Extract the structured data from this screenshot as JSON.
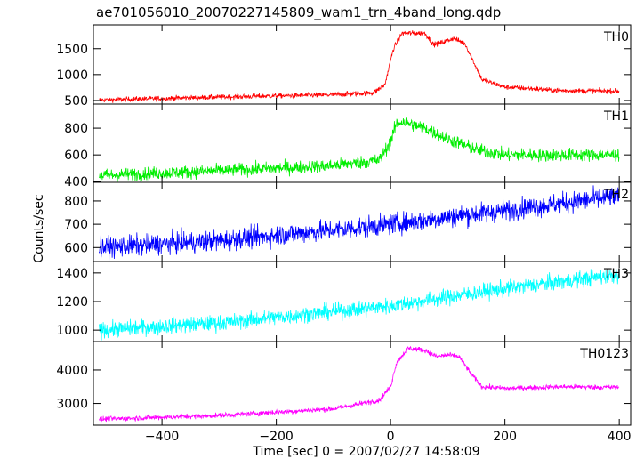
{
  "chart_data": {
    "type": "line",
    "title": "ae701056010_20070227145809_wam1_trn_4band_long.qdp",
    "xlabel": "Time [sec] 0 = 2007/02/27 14:58:09",
    "ylabel": "Counts/sec",
    "xlim": [
      -520,
      420
    ],
    "x_ticks": [
      -400,
      -200,
      0,
      200,
      400
    ],
    "x_tick_labels": [
      "−400",
      "−200",
      "0",
      "200",
      "400"
    ],
    "x_range": [
      -510,
      400
    ],
    "series": [
      {
        "name": "TH0",
        "color": "#ff0000",
        "ylim": [
          430,
          1960
        ],
        "y_ticks": [
          500,
          1000,
          1500
        ],
        "noise": 35,
        "x": [
          -510,
          -400,
          -200,
          -100,
          -30,
          -10,
          5,
          20,
          60,
          75,
          90,
          110,
          130,
          160,
          200,
          300,
          400
        ],
        "y": [
          510,
          540,
          590,
          610,
          650,
          800,
          1500,
          1800,
          1800,
          1580,
          1620,
          1700,
          1600,
          900,
          760,
          690,
          680
        ]
      },
      {
        "name": "TH1",
        "color": "#00ee00",
        "ylim": [
          395,
          980
        ],
        "y_ticks": [
          400,
          600,
          800
        ],
        "noise": 35,
        "x": [
          -510,
          -400,
          -200,
          -100,
          -20,
          0,
          10,
          20,
          60,
          100,
          150,
          200,
          300,
          400
        ],
        "y": [
          445,
          465,
          500,
          520,
          560,
          700,
          830,
          850,
          800,
          720,
          640,
          600,
          600,
          600
        ],
        "y_tick_labels": [
          "400",
          "600",
          "800"
        ]
      },
      {
        "name": "TH2",
        "color": "#0000ff",
        "ylim": [
          540,
          880
        ],
        "y_ticks": [
          600,
          700,
          800
        ],
        "noise": 32,
        "x": [
          -510,
          -300,
          -100,
          0,
          100,
          200,
          300,
          400
        ],
        "y": [
          600,
          630,
          675,
          700,
          730,
          760,
          790,
          820
        ]
      },
      {
        "name": "TH3",
        "color": "#00ffff",
        "ylim": [
          920,
          1480
        ],
        "y_ticks": [
          1000,
          1200,
          1400
        ],
        "noise": 40,
        "x": [
          -510,
          -300,
          -100,
          0,
          100,
          200,
          300,
          400
        ],
        "y": [
          1000,
          1050,
          1130,
          1170,
          1230,
          1290,
          1340,
          1390
        ]
      },
      {
        "name": "TH0123",
        "color": "#ff00ff",
        "ylim": [
          2350,
          4850
        ],
        "y_ticks": [
          3000,
          4000
        ],
        "noise": 55,
        "x": [
          -510,
          -300,
          -100,
          -20,
          0,
          10,
          30,
          60,
          80,
          100,
          120,
          140,
          160,
          200,
          300,
          400
        ],
        "y": [
          2530,
          2640,
          2840,
          3100,
          3500,
          4200,
          4650,
          4600,
          4400,
          4450,
          4400,
          3900,
          3500,
          3450,
          3500,
          3480
        ]
      }
    ]
  }
}
